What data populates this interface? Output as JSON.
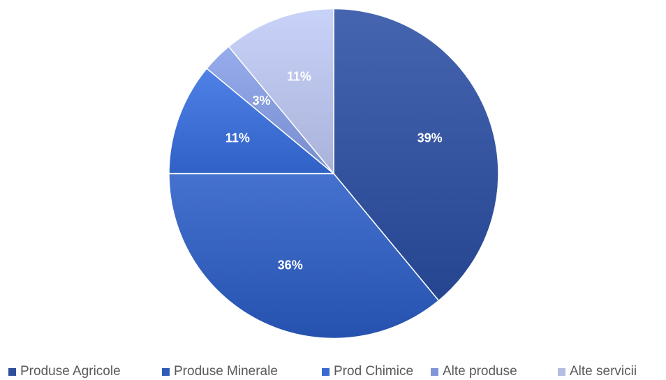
{
  "chart_data": {
    "type": "pie",
    "title": "",
    "categories": [
      "Produse Agricole",
      "Produse Minerale",
      "Prod Chimice",
      "Alte produse",
      "Alte servicii"
    ],
    "values": [
      39,
      36,
      11,
      3,
      11
    ],
    "data_labels": [
      "39%",
      "36%",
      "11%",
      "3%",
      "11%"
    ],
    "colors": [
      "#2f4f9a",
      "#2f5cb8",
      "#3a6bd0",
      "#8096d6",
      "#b3bde3"
    ],
    "start_angle_deg": 0,
    "direction": "clockwise",
    "legend_position": "bottom"
  }
}
